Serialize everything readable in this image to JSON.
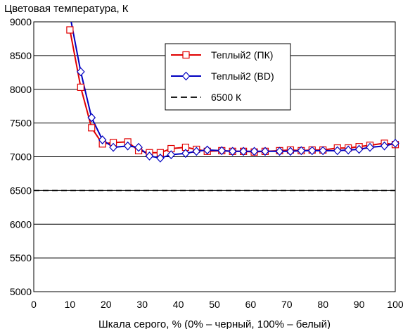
{
  "chart_data": {
    "type": "line",
    "ylabel": "Цветовая температура, К",
    "xlabel": "Шкала серого, % (0% – черный, 100% – белый)",
    "xlim": [
      0,
      100
    ],
    "ylim": [
      5000,
      9000
    ],
    "x_ticks": [
      0,
      10,
      20,
      30,
      40,
      50,
      60,
      70,
      80,
      90,
      100
    ],
    "y_ticks": [
      5000,
      5500,
      6000,
      6500,
      7000,
      7500,
      8000,
      8500,
      9000
    ],
    "grid": "horizontal",
    "legend_position": "top-right",
    "series": [
      {
        "name": "Теплый2 (ПК)",
        "color": "#e00000",
        "marker": "square",
        "x": [
          10,
          13,
          16,
          19,
          22,
          26,
          29,
          32,
          35,
          38,
          42,
          45,
          48,
          52,
          55,
          58,
          61,
          64,
          68,
          71,
          74,
          77,
          80,
          84,
          87,
          90,
          93,
          97,
          100
        ],
        "y": [
          8880,
          8030,
          7430,
          7190,
          7210,
          7220,
          7090,
          7060,
          7060,
          7120,
          7140,
          7110,
          7080,
          7090,
          7080,
          7080,
          7070,
          7080,
          7090,
          7100,
          7090,
          7100,
          7100,
          7130,
          7130,
          7150,
          7170,
          7200,
          7180
        ]
      },
      {
        "name": "Теплый2 (BD)",
        "color": "#0000c0",
        "marker": "diamond",
        "x": [
          10,
          13,
          16,
          19,
          22,
          26,
          29,
          32,
          35,
          38,
          42,
          45,
          48,
          52,
          55,
          58,
          61,
          64,
          68,
          71,
          74,
          77,
          80,
          84,
          87,
          90,
          93,
          97,
          100
        ],
        "y": [
          9100,
          8260,
          7580,
          7250,
          7140,
          7160,
          7140,
          7010,
          6980,
          7030,
          7050,
          7080,
          7100,
          7090,
          7080,
          7080,
          7080,
          7080,
          7080,
          7080,
          7090,
          7090,
          7090,
          7090,
          7100,
          7110,
          7140,
          7160,
          7200
        ]
      },
      {
        "name": "6500 К",
        "color": "#000000",
        "style": "dashed",
        "x": [
          0,
          100
        ],
        "y": [
          6500,
          6500
        ]
      }
    ]
  }
}
